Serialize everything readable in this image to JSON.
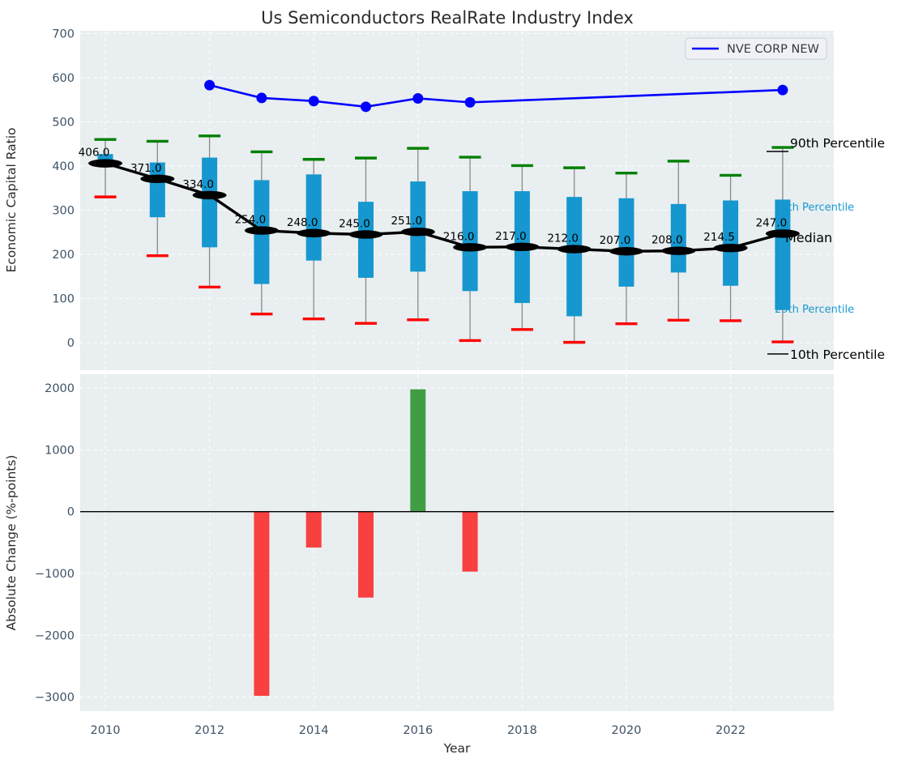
{
  "title": "Us Semiconductors RealRate Industry Index",
  "legend": {
    "label": "NVE CORP NEW"
  },
  "axes": {
    "xlabel": "Year",
    "xticks": [
      2010,
      2012,
      2014,
      2016,
      2018,
      2020,
      2022
    ],
    "top": {
      "ylabel": "Economic Capital Ratio",
      "yticks": [
        0,
        100,
        200,
        300,
        400,
        500,
        600,
        700
      ]
    },
    "bottom": {
      "ylabel": "Absolute Change (%-points)",
      "yticks": [
        2000,
        1000,
        0,
        -1000,
        -2000,
        -3000
      ]
    }
  },
  "annotations": {
    "p90": "90th Percentile",
    "p75": "75th Percentile",
    "median": "Median",
    "p25": "25th Percentile",
    "p10": "10th Percentile"
  },
  "colors": {
    "plot_bg": "#e9eef0",
    "grid": "#ffffff",
    "tick": "#3e5266",
    "label": "#2b2b2b",
    "box_fill": "#1697cf",
    "whisker": "#898989",
    "cap_top": "#008000",
    "cap_bottom": "#ff0000",
    "median": "#000000",
    "nve_line": "#0000ff",
    "bar_negative": "#f94040",
    "bar_positive": "#3f9e43",
    "annotation_cyan": "#189ace",
    "legend_bg": "#eff1f6",
    "legend_border": "#c9cdd4"
  },
  "chart_data": [
    {
      "type": "box",
      "title": "Us Semiconductors RealRate Industry Index",
      "ylabel": "Economic Capital Ratio",
      "ylim": [
        -62,
        706
      ],
      "yticks": [
        0,
        100,
        200,
        300,
        400,
        500,
        600,
        700
      ],
      "grid": true,
      "categories": [
        2010,
        2011,
        2012,
        2013,
        2014,
        2015,
        2016,
        2017,
        2018,
        2019,
        2020,
        2021,
        2022,
        2023
      ],
      "p90": [
        460,
        456,
        468,
        432,
        415,
        418,
        440,
        420,
        401,
        396,
        384,
        411,
        379,
        442
      ],
      "q3": [
        427,
        408,
        419,
        368,
        381,
        319,
        365,
        343,
        343,
        330,
        327,
        314,
        322,
        324
      ],
      "median": [
        406.0,
        371.0,
        334.0,
        254.0,
        248.0,
        245.0,
        251.0,
        216.0,
        217.0,
        212.0,
        207.0,
        208.0,
        214.5,
        247.0
      ],
      "q1": [
        400,
        284,
        216,
        133,
        186,
        147,
        161,
        117,
        90,
        60,
        127,
        159,
        129,
        74
      ],
      "p10": [
        330,
        197,
        126,
        65,
        54,
        44,
        52,
        5,
        30,
        1,
        43,
        51,
        50,
        2
      ],
      "median_labels": [
        "406.0",
        "371.0",
        "334.0",
        "254.0",
        "248.0",
        "245.0",
        "251.0",
        "216.0",
        "217.0",
        "212.0",
        "207.0",
        "208.0",
        "214.5",
        "247.0"
      ],
      "series": [
        {
          "name": "NVE CORP NEW",
          "type": "line",
          "x": [
            2012,
            2013,
            2014,
            2015,
            2016,
            2017,
            2023
          ],
          "y": [
            583,
            554,
            547,
            534,
            553,
            544,
            572
          ]
        }
      ],
      "legend_position": "upper right"
    },
    {
      "type": "bar",
      "ylabel": "Absolute Change (%-points)",
      "xlabel": "Year",
      "ylim": [
        -3228,
        2224
      ],
      "yticks": [
        2000,
        1000,
        0,
        -1000,
        -2000,
        -3000
      ],
      "grid": true,
      "x": [
        2013,
        2014,
        2015,
        2016,
        2017
      ],
      "values": [
        -2980,
        -580,
        -1390,
        1980,
        -970
      ],
      "bar_colors": [
        "#f94040",
        "#f94040",
        "#f94040",
        "#3f9e43",
        "#f94040"
      ]
    }
  ]
}
